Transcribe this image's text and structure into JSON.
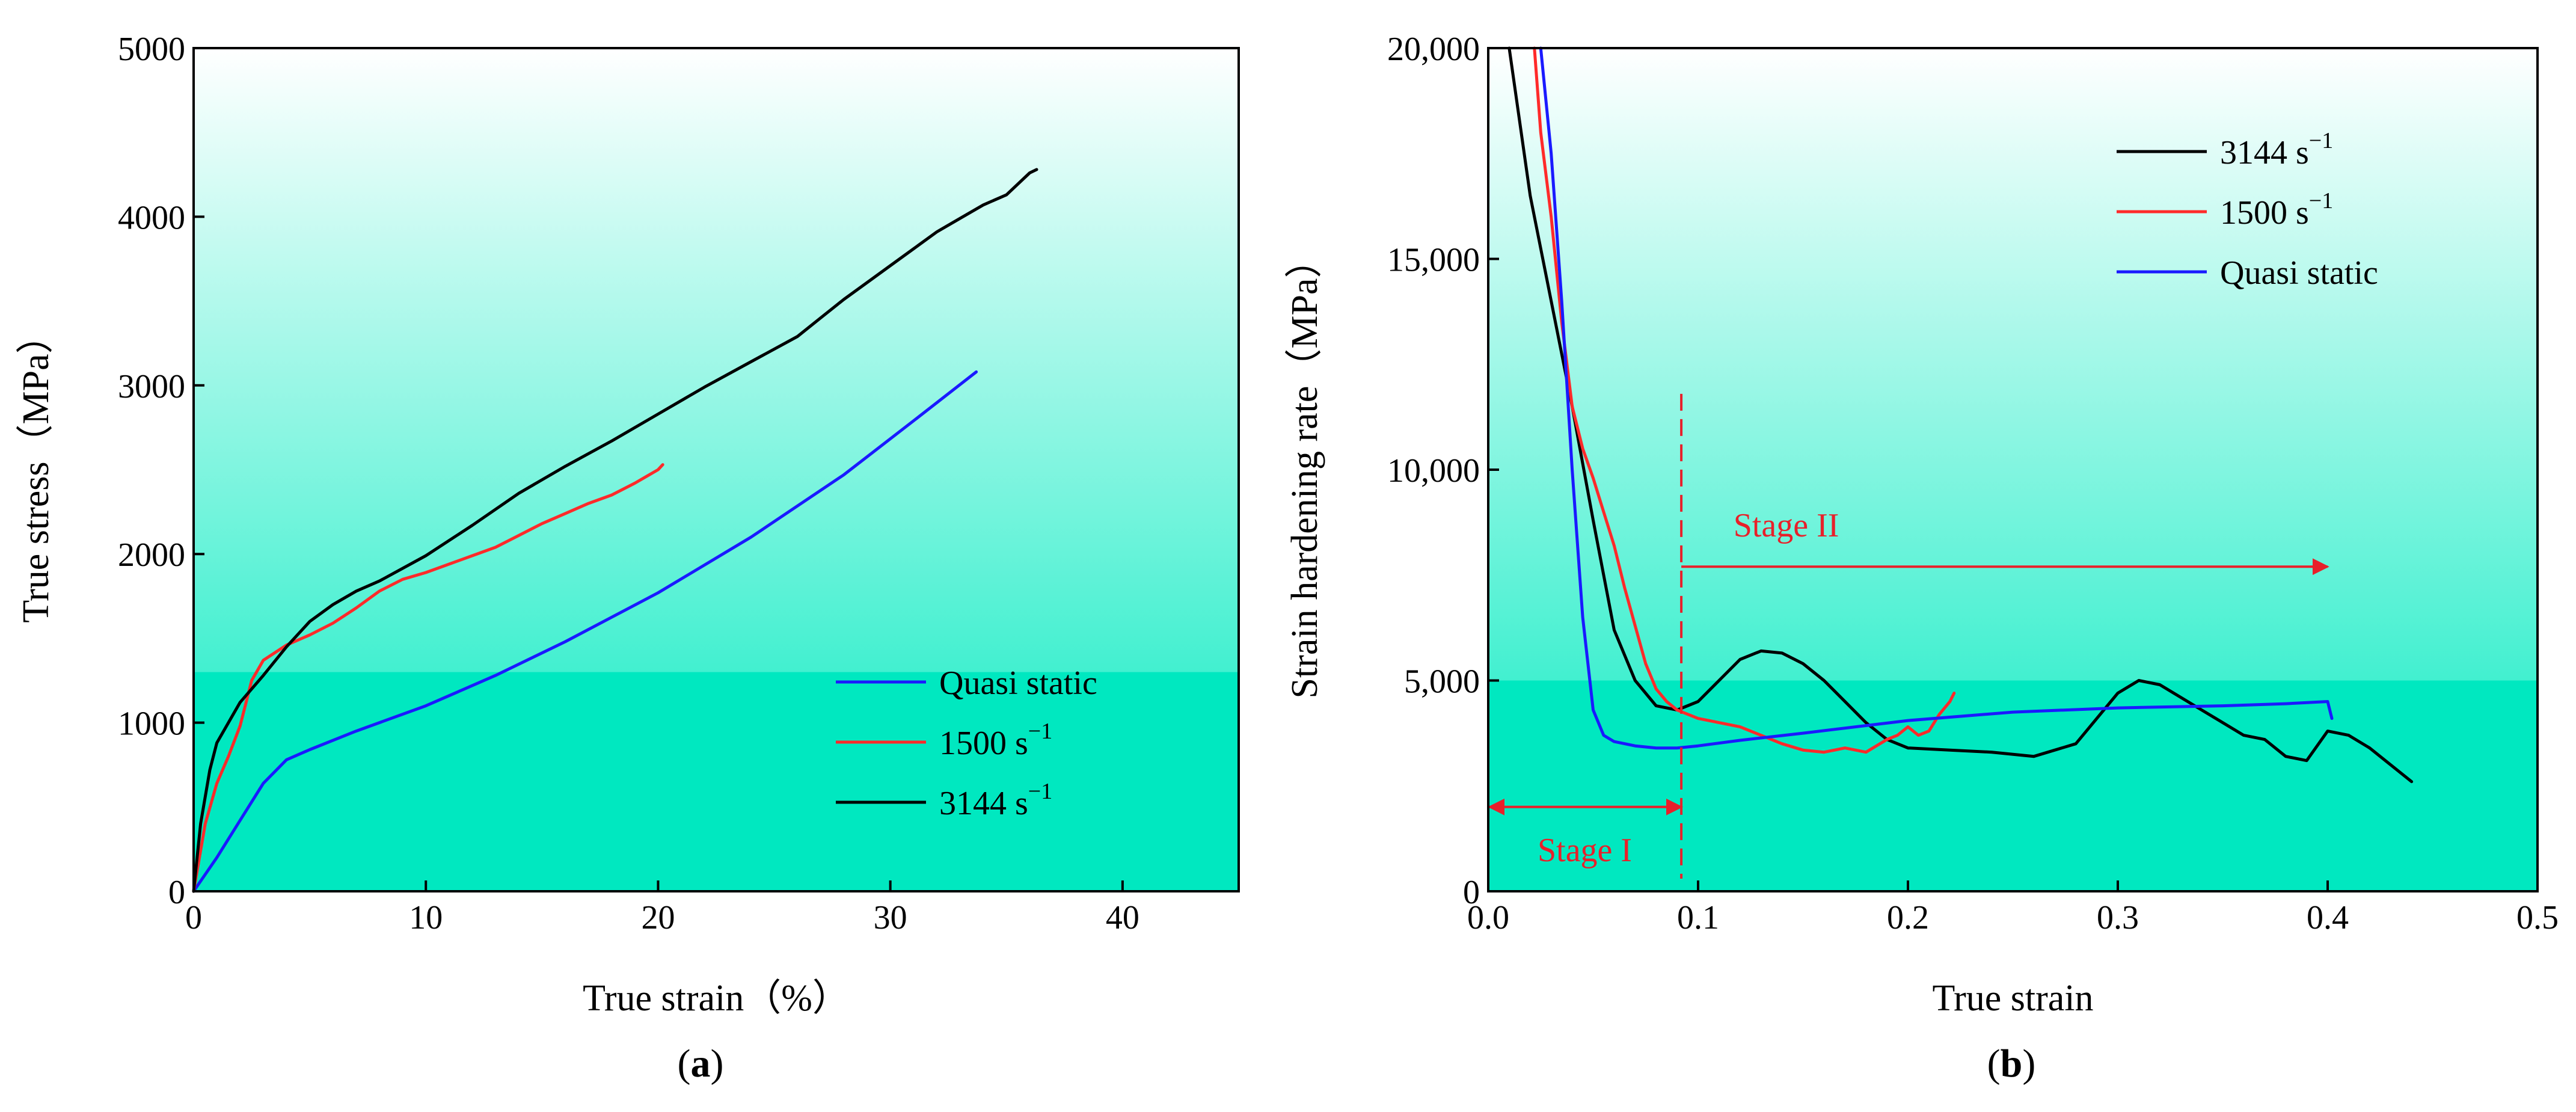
{
  "figure": {
    "panel_labels": [
      "a",
      "b"
    ]
  },
  "chart_data": [
    {
      "type": "line",
      "panel": "a",
      "xlabel": "True strain（%）",
      "ylabel": "True stress（MPa）",
      "xlim": [
        0,
        45
      ],
      "ylim": [
        0,
        5000
      ],
      "xticks": [
        0,
        10,
        20,
        30,
        40
      ],
      "yticks": [
        0,
        1000,
        2000,
        3000,
        4000,
        5000
      ],
      "background": {
        "top": "#ffffff",
        "bottom": "#00e8c0",
        "lower_band_from": 1300
      },
      "legend_position": "bottom-right",
      "series": [
        {
          "name": "Quasi static",
          "label": "Quasi static",
          "color": "#1a1aff",
          "x": [
            0,
            1,
            2,
            3,
            4,
            5,
            7,
            10,
            13,
            16,
            20,
            24,
            28,
            31,
            33.7
          ],
          "y": [
            0,
            200,
            420,
            640,
            780,
            840,
            950,
            1100,
            1280,
            1480,
            1770,
            2100,
            2470,
            2790,
            3080
          ]
        },
        {
          "name": "1500 s-1",
          "label": "1500 s",
          "sup": "−1",
          "color": "#ff2a2a",
          "x": [
            0,
            0.5,
            1,
            1.5,
            2,
            2.5,
            3,
            4,
            5,
            6,
            7,
            8,
            9,
            10,
            11,
            12,
            13,
            14,
            15,
            16,
            17,
            18,
            19,
            19.5,
            20,
            20.2
          ],
          "y": [
            0,
            400,
            640,
            800,
            980,
            1250,
            1370,
            1460,
            1520,
            1590,
            1680,
            1780,
            1850,
            1890,
            1940,
            1990,
            2040,
            2110,
            2180,
            2240,
            2300,
            2350,
            2420,
            2460,
            2500,
            2530
          ]
        },
        {
          "name": "3144 s-1",
          "label": "3144 s",
          "sup": "−1",
          "color": "#000000",
          "x": [
            0,
            0.3,
            0.7,
            1,
            1.5,
            2,
            3,
            4,
            5,
            6,
            7,
            8,
            10,
            12,
            14,
            16,
            18,
            20,
            22,
            24,
            26,
            27,
            28,
            29,
            30,
            31,
            32,
            33,
            34,
            35,
            36,
            36.3
          ],
          "y": [
            0,
            400,
            720,
            880,
            1000,
            1120,
            1280,
            1450,
            1600,
            1700,
            1780,
            1840,
            1990,
            2170,
            2360,
            2520,
            2670,
            2830,
            2990,
            3140,
            3290,
            3400,
            3510,
            3610,
            3710,
            3810,
            3910,
            3990,
            4070,
            4130,
            4260,
            4280
          ]
        }
      ]
    },
    {
      "type": "line",
      "panel": "b",
      "xlabel": "True strain",
      "ylabel": "Strain hardening rate（MPa）",
      "xlim": [
        0,
        0.5
      ],
      "ylim": [
        0,
        20000
      ],
      "xticks": [
        0.0,
        0.1,
        0.2,
        0.3,
        0.4,
        0.5
      ],
      "xtick_labels": [
        "0.0",
        "0.1",
        "0.2",
        "0.3",
        "0.4",
        "0.5"
      ],
      "yticks": [
        0,
        5000,
        10000,
        15000,
        20000
      ],
      "ytick_labels": [
        "0",
        "5,000",
        "10,000",
        "15,000",
        "20,000"
      ],
      "background": {
        "top": "#ffffff",
        "bottom": "#00e8c0",
        "lower_band_from": 5000
      },
      "legend_position": "top-right",
      "series": [
        {
          "name": "3144 s-1",
          "label": "3144 s",
          "sup": "−1",
          "color": "#000000",
          "x": [
            0.01,
            0.02,
            0.03,
            0.04,
            0.05,
            0.06,
            0.07,
            0.08,
            0.09,
            0.1,
            0.11,
            0.12,
            0.13,
            0.14,
            0.15,
            0.16,
            0.17,
            0.18,
            0.19,
            0.2,
            0.22,
            0.24,
            0.26,
            0.28,
            0.3,
            0.31,
            0.32,
            0.34,
            0.36,
            0.37,
            0.38,
            0.39,
            0.4,
            0.41,
            0.42,
            0.43,
            0.44
          ],
          "y": [
            20000,
            16500,
            14000,
            11500,
            8800,
            6200,
            5000,
            4400,
            4300,
            4500,
            5000,
            5500,
            5700,
            5650,
            5400,
            5000,
            4500,
            4000,
            3600,
            3400,
            3350,
            3300,
            3200,
            3500,
            4700,
            5000,
            4900,
            4300,
            3700,
            3600,
            3200,
            3100,
            3800,
            3700,
            3400,
            3000,
            2600
          ]
        },
        {
          "name": "1500 s-1",
          "label": "1500 s",
          "sup": "−1",
          "color": "#ff2a2a",
          "x": [
            0.022,
            0.025,
            0.03,
            0.035,
            0.04,
            0.045,
            0.05,
            0.055,
            0.06,
            0.065,
            0.07,
            0.075,
            0.08,
            0.085,
            0.09,
            0.1,
            0.11,
            0.12,
            0.13,
            0.14,
            0.15,
            0.16,
            0.17,
            0.18,
            0.19,
            0.195,
            0.2,
            0.205,
            0.21,
            0.215,
            0.22,
            0.222
          ],
          "y": [
            20000,
            18000,
            16000,
            13500,
            11500,
            10500,
            9800,
            9000,
            8200,
            7200,
            6300,
            5400,
            4800,
            4500,
            4300,
            4100,
            4000,
            3900,
            3700,
            3500,
            3350,
            3300,
            3400,
            3300,
            3600,
            3700,
            3900,
            3700,
            3800,
            4200,
            4500,
            4700
          ]
        },
        {
          "name": "Quasi static",
          "label": "Quasi static",
          "color": "#1a1aff",
          "x": [
            0.025,
            0.03,
            0.035,
            0.04,
            0.045,
            0.05,
            0.055,
            0.06,
            0.07,
            0.08,
            0.09,
            0.1,
            0.12,
            0.15,
            0.2,
            0.25,
            0.3,
            0.35,
            0.38,
            0.4,
            0.402
          ],
          "y": [
            20000,
            17500,
            14000,
            10000,
            6500,
            4300,
            3700,
            3550,
            3450,
            3400,
            3400,
            3450,
            3580,
            3750,
            4050,
            4250,
            4350,
            4400,
            4450,
            4500,
            4100
          ]
        }
      ],
      "annotations": {
        "divider_x": 0.092,
        "stage1": {
          "label": "Stage I",
          "x_from": 0.0,
          "x_to": 0.092,
          "y": 2000
        },
        "stage2": {
          "label": "Stage II",
          "x_from": 0.092,
          "x_to": 0.4,
          "y": 7700
        }
      }
    }
  ]
}
